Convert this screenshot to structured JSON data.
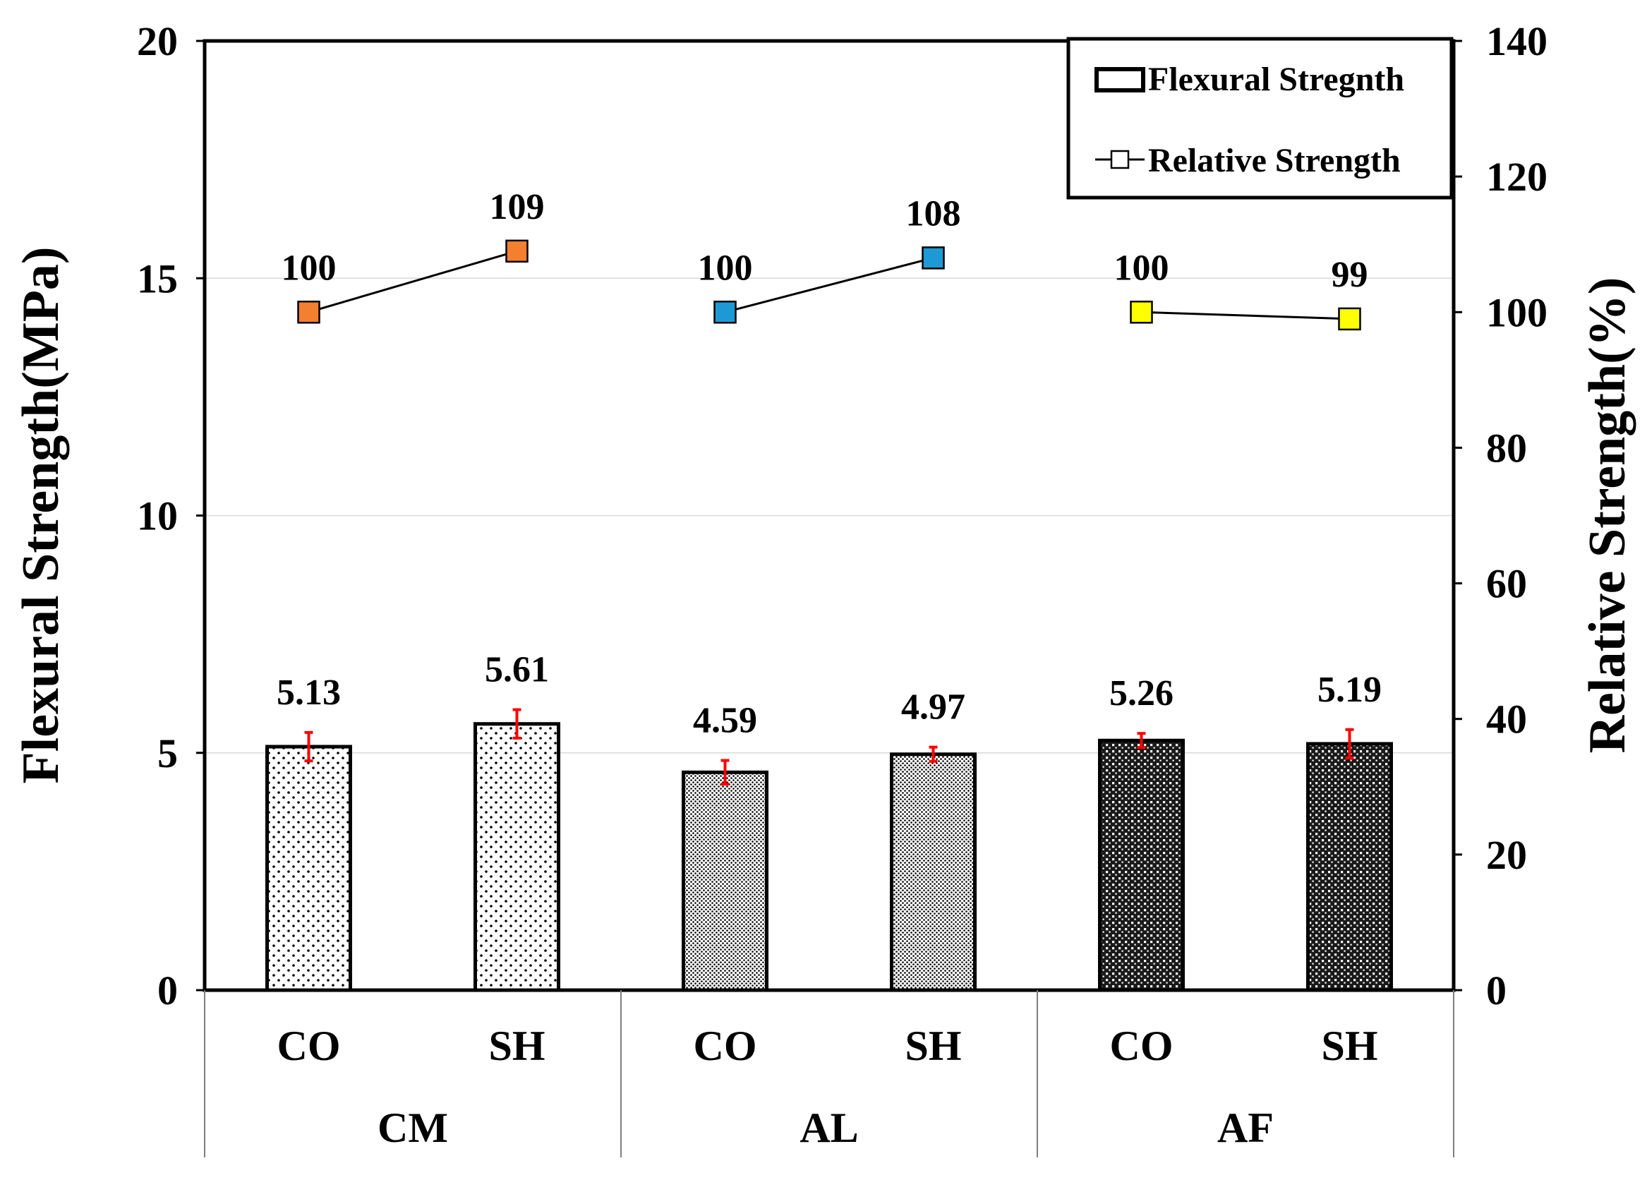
{
  "chart_data": {
    "type": "bar",
    "categories": [
      "CO",
      "SH",
      "CO",
      "SH",
      "CO",
      "SH"
    ],
    "groups": [
      "CM",
      "AL",
      "AF"
    ],
    "series": [
      {
        "name": "Flexural Stregnth",
        "type": "bar",
        "axis": "left",
        "values": [
          5.13,
          5.61,
          4.59,
          4.97,
          5.26,
          5.19
        ],
        "labels": [
          "5.13",
          "5.61",
          "4.59",
          "4.97",
          "5.26",
          "5.19"
        ],
        "errors": [
          0.3,
          0.3,
          0.25,
          0.15,
          0.15,
          0.3
        ],
        "patterns": [
          "sparse-dot",
          "sparse-dot",
          "medium-dot",
          "medium-dot",
          "dense-check",
          "dense-check"
        ]
      },
      {
        "name": "Relative Strength",
        "type": "line",
        "axis": "right",
        "values": [
          100,
          109,
          100,
          108,
          100,
          99
        ],
        "labels": [
          "100",
          "109",
          "100",
          "108",
          "100",
          "99"
        ],
        "marker_colors": [
          "#f47f2f",
          "#f47f2f",
          "#1d9ad6",
          "#1d9ad6",
          "#ffff00",
          "#ffff00"
        ]
      }
    ],
    "ylabel": "Flexural Strength(MPa)",
    "y2label": "Relative Strength(%)",
    "ylim": [
      0,
      20
    ],
    "y2lim": [
      0,
      140
    ],
    "yticks": [
      "0",
      "5",
      "10",
      "15",
      "20"
    ],
    "y2ticks": [
      "0",
      "20",
      "40",
      "60",
      "80",
      "100",
      "120",
      "140"
    ],
    "legend_position": "top-right",
    "grid": true,
    "error_color": "#ff0000"
  }
}
